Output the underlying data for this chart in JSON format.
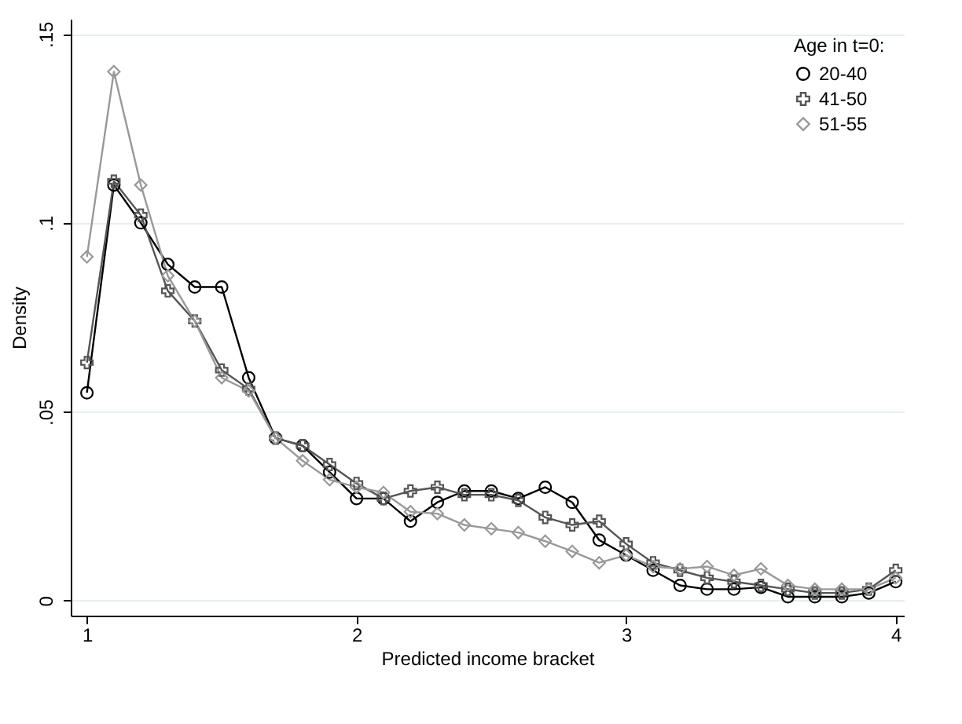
{
  "chart_data": {
    "type": "line",
    "xlabel": "Predicted income bracket",
    "ylabel": "Density",
    "legend_title": "Age in t=0:",
    "legend": "top right",
    "grid": "y",
    "x": [
      1,
      1.1,
      1.2,
      1.3,
      1.4,
      1.5,
      1.6,
      1.7,
      1.8,
      1.9,
      2,
      2.1,
      2.2,
      2.3,
      2.4,
      2.5,
      2.6,
      2.7,
      2.8,
      2.9,
      3,
      3.1,
      3.2,
      3.3,
      3.4,
      3.5,
      3.6,
      3.7,
      3.8,
      3.9,
      4
    ],
    "xlim": [
      0.94,
      4.03
    ],
    "xticks": [
      1,
      2,
      3,
      4
    ],
    "ylim": [
      -0.004,
      0.154
    ],
    "yticks": [
      {
        "value": 0,
        "label": "0"
      },
      {
        "value": 0.05,
        "label": ".05"
      },
      {
        "value": 0.1,
        "label": ".1"
      },
      {
        "value": 0.15,
        "label": ".15"
      }
    ],
    "series": [
      {
        "name": "20-40",
        "color": "#000000",
        "marker": "circle",
        "values": [
          0.055,
          0.11,
          0.1,
          0.089,
          0.083,
          0.083,
          0.059,
          0.043,
          0.041,
          0.034,
          0.027,
          0.027,
          0.021,
          0.026,
          0.029,
          0.029,
          0.027,
          0.03,
          0.026,
          0.016,
          0.012,
          0.008,
          0.004,
          0.003,
          0.003,
          0.0035,
          0.001,
          0.001,
          0.001,
          0.002,
          0.005
        ]
      },
      {
        "name": "41-50",
        "color": "#555555",
        "marker": "cross",
        "values": [
          0.063,
          0.111,
          0.102,
          0.082,
          0.074,
          0.061,
          0.056,
          0.043,
          0.041,
          0.036,
          0.031,
          0.027,
          0.029,
          0.03,
          0.028,
          0.028,
          0.0265,
          0.022,
          0.02,
          0.021,
          0.015,
          0.01,
          0.008,
          0.006,
          0.005,
          0.004,
          0.003,
          0.002,
          0.002,
          0.003,
          0.008
        ]
      },
      {
        "name": "51-55",
        "color": "#999999",
        "marker": "diamond",
        "values": [
          0.091,
          0.14,
          0.11,
          0.086,
          0.074,
          0.059,
          0.0555,
          0.043,
          0.037,
          0.032,
          0.03,
          0.0286,
          0.0235,
          0.023,
          0.02,
          0.019,
          0.018,
          0.0157,
          0.013,
          0.01,
          0.012,
          0.009,
          0.0084,
          0.009,
          0.0067,
          0.0084,
          0.004,
          0.003,
          0.003,
          0.003,
          0.006
        ]
      }
    ]
  }
}
